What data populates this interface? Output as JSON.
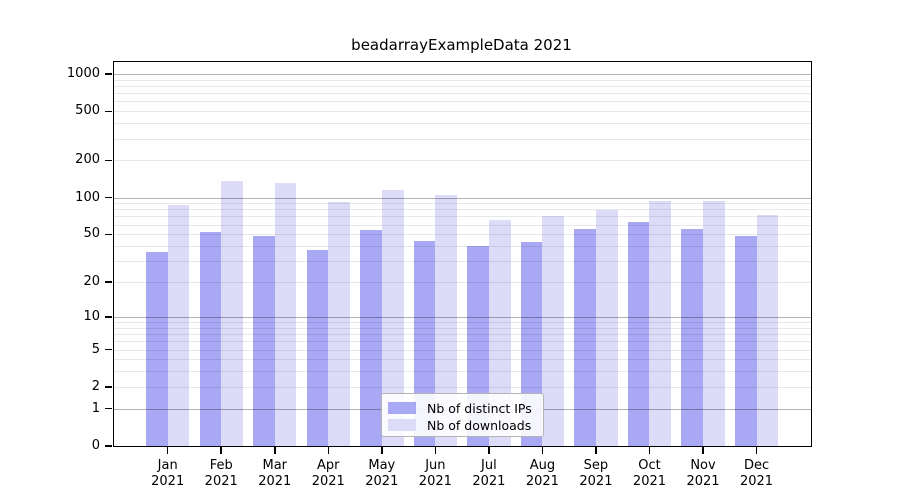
{
  "chart_data": {
    "type": "bar",
    "title": "beadarrayExampleData 2021",
    "categories": [
      "Jan",
      "Feb",
      "Mar",
      "Apr",
      "May",
      "Jun",
      "Jul",
      "Aug",
      "Sep",
      "Oct",
      "Nov",
      "Dec"
    ],
    "year_label": "2021",
    "series": [
      {
        "name": "Nb of distinct IPs",
        "color": "#A8A8F5",
        "values": [
          36,
          52,
          48,
          37,
          54,
          44,
          40,
          43,
          55,
          63,
          55,
          48
        ]
      },
      {
        "name": "Nb of downloads",
        "color": "#DCDCF8",
        "values": [
          87,
          137,
          132,
          92,
          115,
          105,
          66,
          70,
          79,
          94,
          93,
          72
        ]
      }
    ],
    "y_axis": {
      "scale": "log1p",
      "ticks": [
        0,
        1,
        2,
        5,
        10,
        20,
        50,
        100,
        200,
        500,
        1000
      ],
      "major_gridlines": [
        1,
        10,
        100,
        1000
      ],
      "minor_gridline_decades": [
        1,
        10,
        100
      ],
      "top_value": 1250,
      "grid": true
    },
    "legend": {
      "position": "lower-center",
      "entries": [
        "Nb of distinct IPs",
        "Nb of downloads"
      ]
    },
    "colors": {
      "background": "#FFFFFF",
      "axis": "#000000",
      "major_grid": "rgba(0,0,0,0.30)",
      "minor_grid": "rgba(0,0,0,0.09)",
      "text": "#000000",
      "legend_border": "#B4B4B4"
    }
  }
}
